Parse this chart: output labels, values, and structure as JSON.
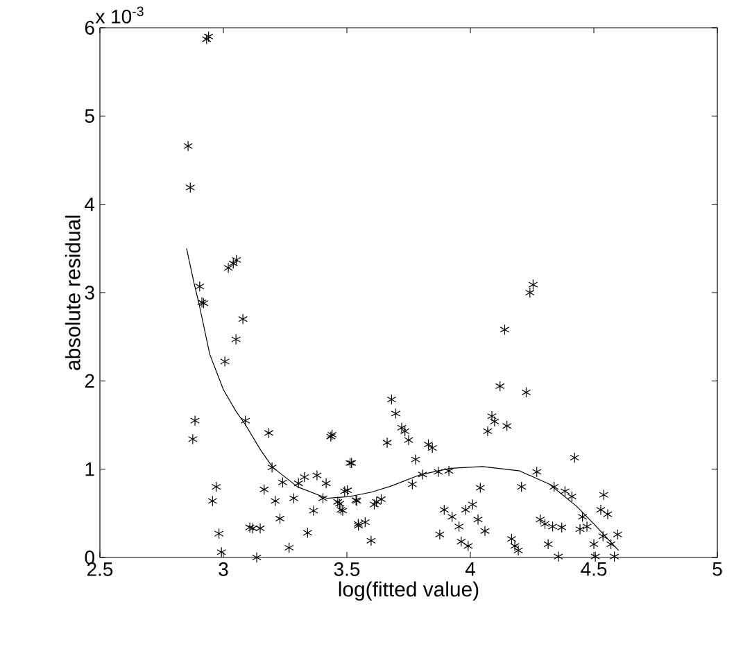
{
  "chart_data": {
    "type": "scatter",
    "xlabel": "log(fitted value)",
    "ylabel": "absolute residual",
    "annotations": [
      "x 10$^{-3}$"
    ],
    "xlim": [
      2.5,
      5
    ],
    "ylim": [
      0,
      6
    ],
    "xticks": [
      2.5,
      3,
      3.5,
      4,
      4.5,
      5
    ],
    "yticks": [
      0,
      1,
      2,
      3,
      4,
      5,
      6
    ],
    "marker": "cross",
    "series": [
      {
        "color": "#000000",
        "x": [
          2.932,
          2.94,
          2.857,
          2.866,
          3.02,
          3.04,
          3.053,
          2.904,
          2.913,
          2.92,
          3.079,
          3.051,
          3.006,
          3.089,
          3.184,
          2.885,
          2.876,
          3.435,
          3.44,
          3.519,
          3.197,
          2.971,
          2.956,
          2.982,
          2.992,
          3.135,
          3.107,
          3.119,
          3.149,
          3.266,
          3.341,
          3.165,
          3.24,
          3.21,
          3.229,
          3.285,
          3.304,
          3.328,
          3.365,
          3.379,
          3.403,
          3.416,
          3.471,
          3.483,
          3.502,
          3.547,
          3.54,
          4.254,
          4.241,
          4.139,
          4.12,
          4.226,
          4.087,
          4.098,
          4.07,
          4.148,
          4.422,
          3.681,
          3.698,
          3.722,
          3.735,
          3.75,
          3.663,
          3.83,
          3.846,
          3.513,
          3.778,
          3.806,
          3.87,
          3.913,
          3.765,
          4.04,
          4.207,
          4.269,
          4.339,
          4.383,
          4.411,
          4.54,
          3.491,
          3.463,
          3.476,
          3.537,
          3.62,
          3.639,
          3.611,
          3.546,
          3.574,
          3.598,
          3.894,
          3.926,
          3.876,
          3.954,
          3.963,
          3.991,
          3.981,
          4.009,
          4.031,
          4.059,
          4.167,
          4.18,
          4.194,
          4.283,
          4.302,
          4.333,
          4.37,
          4.315,
          4.356,
          4.454,
          4.444,
          4.472,
          4.528,
          4.556,
          4.5,
          4.506,
          4.537,
          4.569,
          4.583,
          4.596
        ],
        "values": [
          5.87,
          5.9,
          4.66,
          4.19,
          3.28,
          3.33,
          3.37,
          3.07,
          2.89,
          2.88,
          2.7,
          2.47,
          2.22,
          1.55,
          1.41,
          1.55,
          1.34,
          1.37,
          1.39,
          1.07,
          1.02,
          0.8,
          0.64,
          0.27,
          0.06,
          0.0,
          0.34,
          0.33,
          0.33,
          0.11,
          0.28,
          0.77,
          0.85,
          0.64,
          0.44,
          0.67,
          0.84,
          0.91,
          0.53,
          0.93,
          0.67,
          0.84,
          0.61,
          0.53,
          0.76,
          0.36,
          0.64,
          3.09,
          3.0,
          2.58,
          1.94,
          1.87,
          1.6,
          1.54,
          1.43,
          1.49,
          1.13,
          1.79,
          1.63,
          1.47,
          1.43,
          1.33,
          1.3,
          1.28,
          1.24,
          1.07,
          1.11,
          0.94,
          0.97,
          0.98,
          0.83,
          0.79,
          0.8,
          0.97,
          0.8,
          0.75,
          0.69,
          0.71,
          0.75,
          0.63,
          0.54,
          0.65,
          0.63,
          0.66,
          0.6,
          0.38,
          0.4,
          0.19,
          0.54,
          0.46,
          0.26,
          0.35,
          0.18,
          0.13,
          0.54,
          0.6,
          0.43,
          0.3,
          0.21,
          0.13,
          0.08,
          0.43,
          0.38,
          0.35,
          0.34,
          0.15,
          0.01,
          0.46,
          0.32,
          0.35,
          0.54,
          0.49,
          0.15,
          0.01,
          0.24,
          0.15,
          0.01,
          0.26
        ]
      },
      {
        "type": "line",
        "color": "#000000",
        "marker": "none",
        "x": [
          2.851,
          2.88,
          2.9,
          2.945,
          3.0,
          3.05,
          3.09,
          3.15,
          3.2,
          3.3,
          3.42,
          3.51,
          3.6,
          3.68,
          3.8,
          3.92,
          4.05,
          4.2,
          4.32,
          4.43,
          4.5,
          4.6
        ],
        "values": [
          3.5,
          3.12,
          2.89,
          2.3,
          1.9,
          1.66,
          1.5,
          1.22,
          1.02,
          0.8,
          0.67,
          0.69,
          0.74,
          0.81,
          0.94,
          1.01,
          1.03,
          0.98,
          0.83,
          0.58,
          0.38,
          0.08
        ]
      }
    ]
  }
}
